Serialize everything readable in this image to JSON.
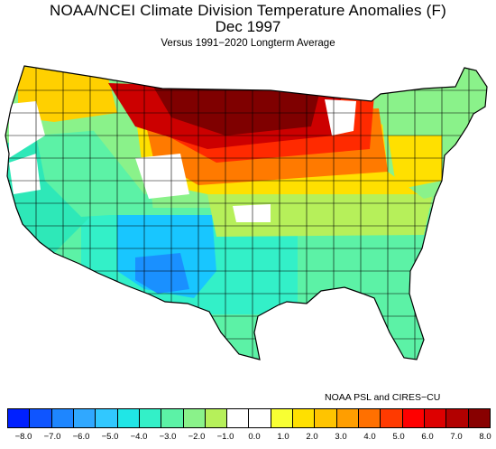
{
  "header": {
    "title": "NOAA/NCEI Climate Division Temperature Anomalies (F)",
    "period": "Dec 1997",
    "baseline": "Versus 1991−2020 Longterm Average"
  },
  "credit": "NOAA PSL and CIRES−CU",
  "legend": {
    "colors": [
      "#0020ff",
      "#0f55ff",
      "#1e86ff",
      "#30a8ff",
      "#31c8ff",
      "#20e6e6",
      "#33f0c8",
      "#5cf2a6",
      "#8af28a",
      "#b6f05a",
      "#ffffff",
      "#ffffff",
      "#f8ff33",
      "#ffe000",
      "#ffc400",
      "#ff9e00",
      "#ff7000",
      "#ff3a00",
      "#ff0000",
      "#dd0000",
      "#b20000",
      "#880000"
    ],
    "ticks": [
      "−8.0",
      "−7.0",
      "−6.0",
      "−5.0",
      "−4.0",
      "−3.0",
      "−2.0",
      "−1.0",
      "0.0",
      "1.0",
      "2.0",
      "3.0",
      "4.0",
      "5.0",
      "6.0",
      "7.0",
      "8.0"
    ]
  },
  "map_regions": {
    "northern_plains_core": "#7f0000",
    "northern_plains_ring": "#cc0000",
    "upper_midwest": "#ff2a00",
    "north_central_band": "#ff7a00",
    "great_lakes_band": "#ffb000",
    "central_band": "#ffe000",
    "pacific_northwest": "#ffd000",
    "west_coast": "#2ee8b8",
    "southwest_cold": "#18c6ff",
    "southwest_core": "#1a90ff",
    "southern_plains": "#33f0c8",
    "southeast": "#5cf2a6",
    "ohio_valley": "#b6f05a",
    "northeast": "#8af28a",
    "neutral": "#ffffff"
  }
}
